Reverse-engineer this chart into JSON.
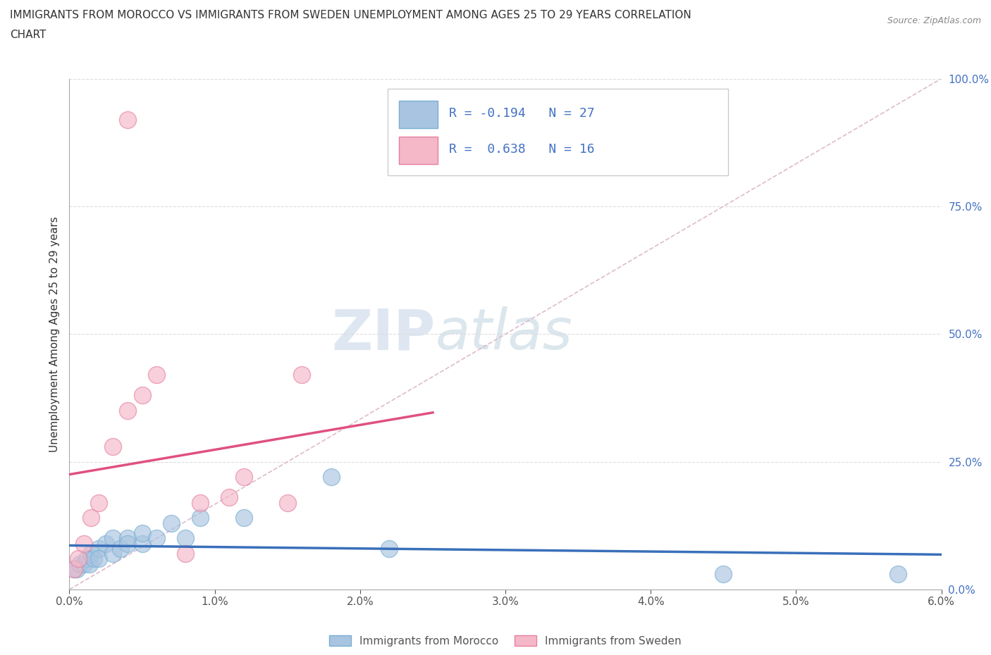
{
  "title_line1": "IMMIGRANTS FROM MOROCCO VS IMMIGRANTS FROM SWEDEN UNEMPLOYMENT AMONG AGES 25 TO 29 YEARS CORRELATION",
  "title_line2": "CHART",
  "source": "Source: ZipAtlas.com",
  "ylabel": "Unemployment Among Ages 25 to 29 years",
  "xlim": [
    0.0,
    0.06
  ],
  "ylim": [
    0.0,
    1.0
  ],
  "xticks": [
    0.0,
    0.01,
    0.02,
    0.03,
    0.04,
    0.05,
    0.06
  ],
  "xticklabels": [
    "0.0%",
    "1.0%",
    "2.0%",
    "3.0%",
    "4.0%",
    "5.0%",
    "6.0%"
  ],
  "yticks": [
    0.0,
    0.25,
    0.5,
    0.75,
    1.0
  ],
  "yticklabels": [
    "0.0%",
    "25.0%",
    "50.0%",
    "75.0%",
    "100.0%"
  ],
  "background_color": "#ffffff",
  "watermark_zip": "ZIP",
  "watermark_atlas": "atlas",
  "legend_r1": "R = -0.194",
  "legend_n1": "N = 27",
  "legend_r2": "R =  0.638",
  "legend_n2": "N = 16",
  "color_morocco": "#a8c4e0",
  "color_morocco_edge": "#7aafd4",
  "color_sweden": "#f4b8c8",
  "color_sweden_edge": "#e87fa0",
  "color_morocco_line": "#3a6fba",
  "color_sweden_line": "#e05080",
  "color_diagonal": "#cccccc",
  "scatter_morocco_x": [
    0.0003,
    0.0005,
    0.0007,
    0.001,
    0.0012,
    0.0014,
    0.0015,
    0.0017,
    0.002,
    0.002,
    0.0025,
    0.003,
    0.003,
    0.0035,
    0.004,
    0.004,
    0.005,
    0.005,
    0.006,
    0.007,
    0.008,
    0.009,
    0.012,
    0.018,
    0.022,
    0.045,
    0.057
  ],
  "scatter_morocco_y": [
    0.04,
    0.04,
    0.05,
    0.05,
    0.06,
    0.05,
    0.07,
    0.06,
    0.08,
    0.06,
    0.09,
    0.07,
    0.1,
    0.08,
    0.1,
    0.09,
    0.09,
    0.11,
    0.1,
    0.13,
    0.1,
    0.14,
    0.14,
    0.22,
    0.08,
    0.03,
    0.03
  ],
  "scatter_sweden_x": [
    0.0003,
    0.0006,
    0.001,
    0.0015,
    0.002,
    0.003,
    0.004,
    0.005,
    0.006,
    0.008,
    0.009,
    0.011,
    0.012,
    0.015,
    0.016,
    0.004
  ],
  "scatter_sweden_y": [
    0.04,
    0.06,
    0.09,
    0.14,
    0.17,
    0.28,
    0.35,
    0.38,
    0.42,
    0.07,
    0.17,
    0.18,
    0.22,
    0.17,
    0.42,
    0.92
  ]
}
